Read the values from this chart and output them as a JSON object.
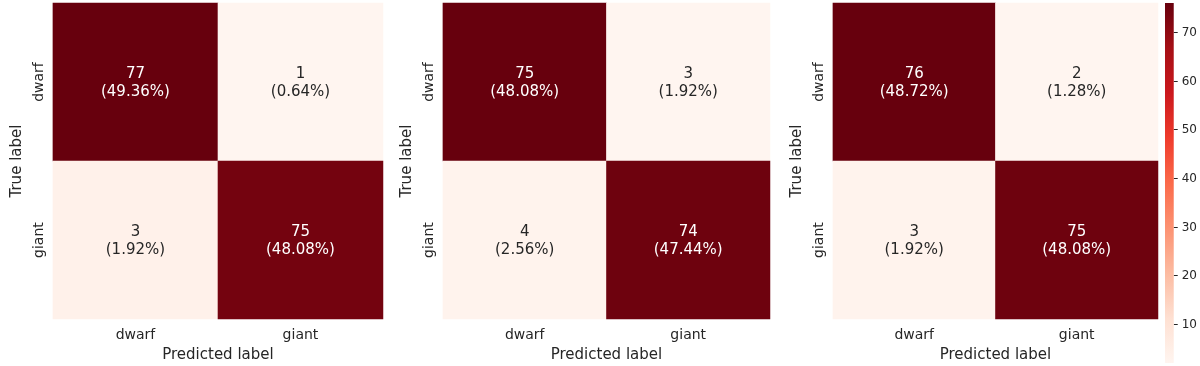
{
  "chart_data": [
    {
      "type": "heatmap",
      "xlabel": "Predicted label",
      "ylabel": "True label",
      "categories": [
        "dwarf",
        "giant"
      ],
      "y_categories": [
        "dwarf",
        "giant"
      ],
      "data_labels": true,
      "cells": [
        [
          77,
          1
        ],
        [
          3,
          75
        ]
      ],
      "annotations": [
        "(49.36%)",
        "(0.64%)",
        "(1.92%)",
        "(48.08%)"
      ]
    },
    {
      "type": "heatmap",
      "xlabel": "Predicted label",
      "ylabel": "True label",
      "categories": [
        "dwarf",
        "giant"
      ],
      "y_categories": [
        "dwarf",
        "giant"
      ],
      "data_labels": true,
      "cells": [
        [
          75,
          3
        ],
        [
          4,
          74
        ]
      ],
      "annotations": [
        "(48.08%)",
        "(1.92%)",
        "(2.56%)",
        "(47.44%)"
      ]
    },
    {
      "type": "heatmap",
      "xlabel": "Predicted label",
      "ylabel": "True label",
      "categories": [
        "dwarf",
        "giant"
      ],
      "y_categories": [
        "dwarf",
        "giant"
      ],
      "data_labels": true,
      "cells": [
        [
          76,
          2
        ],
        [
          3,
          75
        ]
      ],
      "annotations": [
        "(48.72%)",
        "(1.28%)",
        "(1.92%)",
        "(48.08%)"
      ],
      "clim": [
        2,
        76
      ],
      "cticks": [
        10,
        20,
        30,
        40,
        50,
        60,
        70
      ]
    }
  ]
}
